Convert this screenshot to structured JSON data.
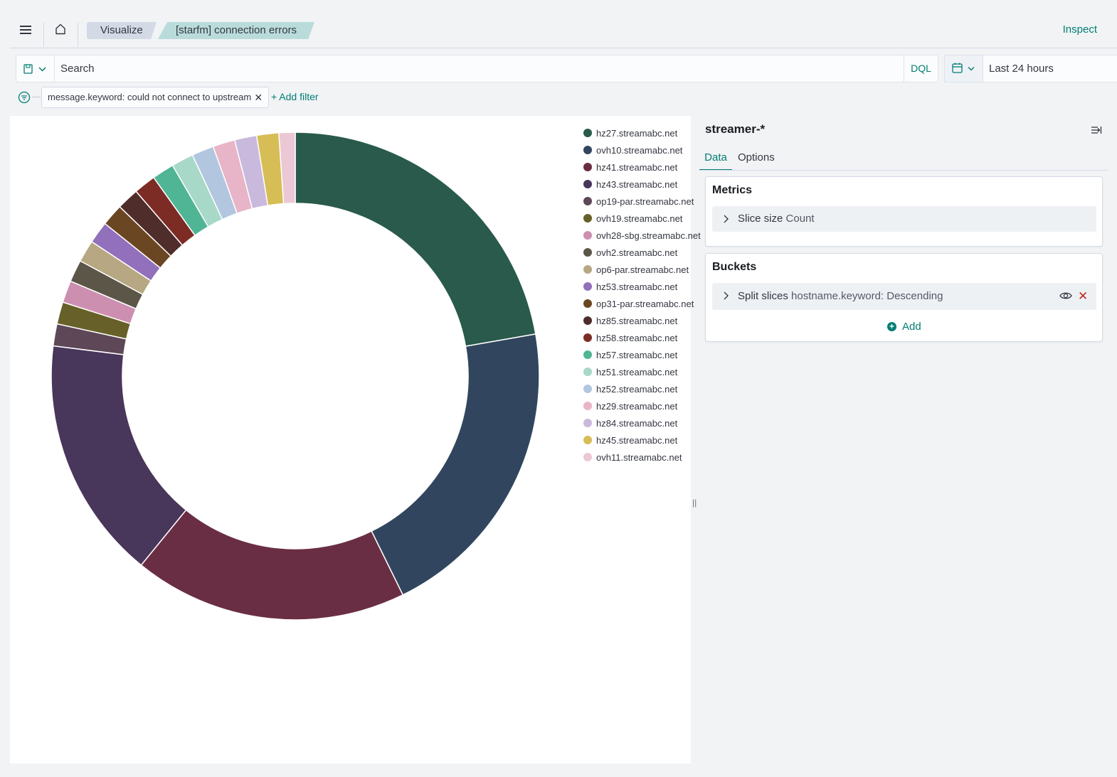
{
  "header": {
    "menu_icon": "hamburger-menu-icon",
    "home_icon": "home-icon",
    "breadcrumbs": [
      "Visualize",
      "[starfm] connection errors"
    ],
    "inspect_label": "Inspect"
  },
  "query": {
    "saved_query_icon": "saved-query-icon",
    "search_placeholder": "Search",
    "language_label": "DQL",
    "calendar_icon": "calendar-icon",
    "time_range": "Last 24 hours"
  },
  "filters": {
    "filter_icon": "filter-icon",
    "pills": [
      {
        "label": "message.keyword: could not connect to upstream"
      }
    ],
    "add_filter_label": "+ Add filter"
  },
  "sidebar": {
    "index_pattern": "streamer-*",
    "tabs": [
      "Data",
      "Options"
    ],
    "metrics": {
      "title": "Metrics",
      "row_label": "Slice size",
      "row_value": "Count"
    },
    "buckets": {
      "title": "Buckets",
      "row_label": "Split slices",
      "row_value": "hostname.keyword: Descending",
      "add_label": "Add"
    },
    "resize_handle": "||"
  },
  "chart_data": {
    "type": "pie",
    "donut": true,
    "legend_placement": "right",
    "series": [
      {
        "name": "hz27.streamabc.net",
        "value": 22.8,
        "color": "#295a4c"
      },
      {
        "name": "ovh10.streamabc.net",
        "value": 21.0,
        "color": "#31465e"
      },
      {
        "name": "hz41.streamabc.net",
        "value": 18.6,
        "color": "#6a2e44"
      },
      {
        "name": "hz43.streamabc.net",
        "value": 16.5,
        "color": "#49365b"
      },
      {
        "name": "op19-par.streamabc.net",
        "value": 1.5,
        "color": "#5e4757"
      },
      {
        "name": "ovh19.streamabc.net",
        "value": 1.5,
        "color": "#676129"
      },
      {
        "name": "ovh28-sbg.streamabc.net",
        "value": 1.5,
        "color": "#cc8fb0"
      },
      {
        "name": "ovh2.streamabc.net",
        "value": 1.5,
        "color": "#5b5648"
      },
      {
        "name": "op6-par.streamabc.net",
        "value": 1.5,
        "color": "#b7a782"
      },
      {
        "name": "hz53.streamabc.net",
        "value": 1.5,
        "color": "#9270bb"
      },
      {
        "name": "op31-par.streamabc.net",
        "value": 1.5,
        "color": "#6b4622"
      },
      {
        "name": "hz85.streamabc.net",
        "value": 1.5,
        "color": "#4f2d2a"
      },
      {
        "name": "hz58.streamabc.net",
        "value": 1.5,
        "color": "#7c2c25"
      },
      {
        "name": "hz57.streamabc.net",
        "value": 1.5,
        "color": "#4fb595"
      },
      {
        "name": "hz51.streamabc.net",
        "value": 1.5,
        "color": "#a8d8c8"
      },
      {
        "name": "hz52.streamabc.net",
        "value": 1.5,
        "color": "#b2c7df"
      },
      {
        "name": "hz29.streamabc.net",
        "value": 1.5,
        "color": "#e8b4c8"
      },
      {
        "name": "hz84.streamabc.net",
        "value": 1.5,
        "color": "#c9b9dc"
      },
      {
        "name": "hz45.streamabc.net",
        "value": 1.5,
        "color": "#d6bd56"
      },
      {
        "name": "ovh11.streamabc.net",
        "value": 1.1,
        "color": "#ecc8d4"
      }
    ]
  }
}
